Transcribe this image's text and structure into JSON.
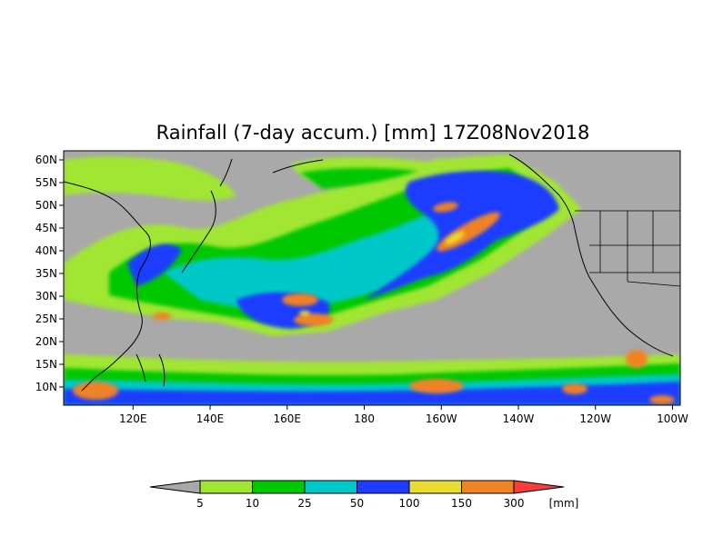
{
  "title": "Rainfall (7-day accum.) [mm] 17Z08Nov2018",
  "map": {
    "lat_labels": [
      "60N",
      "55N",
      "50N",
      "45N",
      "40N",
      "35N",
      "30N",
      "25N",
      "20N",
      "15N",
      "10N"
    ],
    "lat_values": [
      60,
      55,
      50,
      45,
      40,
      35,
      30,
      25,
      20,
      15,
      10
    ],
    "lat_range": [
      6,
      62
    ],
    "lon_labels": [
      "120E",
      "140E",
      "160E",
      "180",
      "160W",
      "140W",
      "120W",
      "100W"
    ],
    "lon_values": [
      120,
      140,
      160,
      180,
      200,
      220,
      240,
      260
    ],
    "lon_range": [
      102,
      262
    ],
    "background_color": "#a9a9a9"
  },
  "colorbar": {
    "unit_label": "[mm]",
    "tick_labels": [
      "5",
      "10",
      "25",
      "50",
      "100",
      "150",
      "300"
    ],
    "under_color": "#a9a9a9",
    "colors": [
      "#a0e632",
      "#00c800",
      "#00c8c8",
      "#1e3cff",
      "#e6dc32",
      "#f08228",
      "#fa3c3c"
    ]
  }
}
